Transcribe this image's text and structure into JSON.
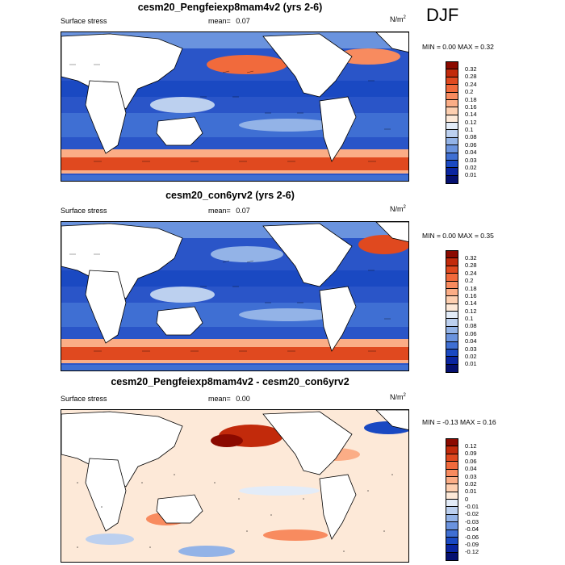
{
  "season": "DJF",
  "panels": [
    {
      "title": "cesm20_Pengfeiexp8mam4v2 (yrs 2-6)",
      "left_label": "Surface stress",
      "mean_label": "mean=",
      "mean_value": "0.07",
      "units_base": "N/m",
      "units_exp": "2",
      "minmax": "MIN =   0.00 MAX =   0.32",
      "colorbar": {
        "labels": [
          "0.32",
          "0.28",
          "0.24",
          "0.2",
          "0.18",
          "0.16",
          "0.14",
          "0.12",
          "0.1",
          "0.08",
          "0.06",
          "0.04",
          "0.03",
          "0.02",
          "0.01"
        ],
        "colors": [
          "#8b0a00",
          "#c22a0b",
          "#e0491f",
          "#f16a3c",
          "#f88b5f",
          "#fbad86",
          "#fdcfb0",
          "#fde9d8",
          "#e3ecf8",
          "#bcd0ef",
          "#93b3e7",
          "#6a93de",
          "#3f6fd3",
          "#1a49c2",
          "#0a25a0",
          "#051070"
        ]
      }
    },
    {
      "title": "cesm20_con6yrv2 (yrs 2-6)",
      "left_label": "Surface stress",
      "mean_label": "mean=",
      "mean_value": "0.07",
      "units_base": "N/m",
      "units_exp": "2",
      "minmax": "MIN =   0.00 MAX =   0.35",
      "colorbar": {
        "labels": [
          "0.32",
          "0.28",
          "0.24",
          "0.2",
          "0.18",
          "0.16",
          "0.14",
          "0.12",
          "0.1",
          "0.08",
          "0.06",
          "0.04",
          "0.03",
          "0.02",
          "0.01"
        ],
        "colors": [
          "#8b0a00",
          "#c22a0b",
          "#e0491f",
          "#f16a3c",
          "#f88b5f",
          "#fbad86",
          "#fdcfb0",
          "#fde9d8",
          "#e3ecf8",
          "#bcd0ef",
          "#93b3e7",
          "#6a93de",
          "#3f6fd3",
          "#1a49c2",
          "#0a25a0",
          "#051070"
        ]
      }
    },
    {
      "title": "cesm20_Pengfeiexp8mam4v2 - cesm20_con6yrv2",
      "left_label": "Surface stress",
      "mean_label": "mean=",
      "mean_value": "0.00",
      "units_base": "N/m",
      "units_exp": "2",
      "minmax": "MIN =  -0.13 MAX =   0.16",
      "colorbar": {
        "labels": [
          "0.12",
          "0.09",
          "0.06",
          "0.04",
          "0.03",
          "0.02",
          "0.01",
          "0",
          "-0.01",
          "-0.02",
          "-0.03",
          "-0.04",
          "-0.06",
          "-0.09",
          "-0.12"
        ],
        "colors": [
          "#8b0a00",
          "#c22a0b",
          "#e0491f",
          "#f16a3c",
          "#f88b5f",
          "#fbad86",
          "#fdcfb0",
          "#fde9d8",
          "#e3ecf8",
          "#bcd0ef",
          "#93b3e7",
          "#6a93de",
          "#3f6fd3",
          "#1a49c2",
          "#0a25a0",
          "#051070"
        ]
      }
    }
  ]
}
